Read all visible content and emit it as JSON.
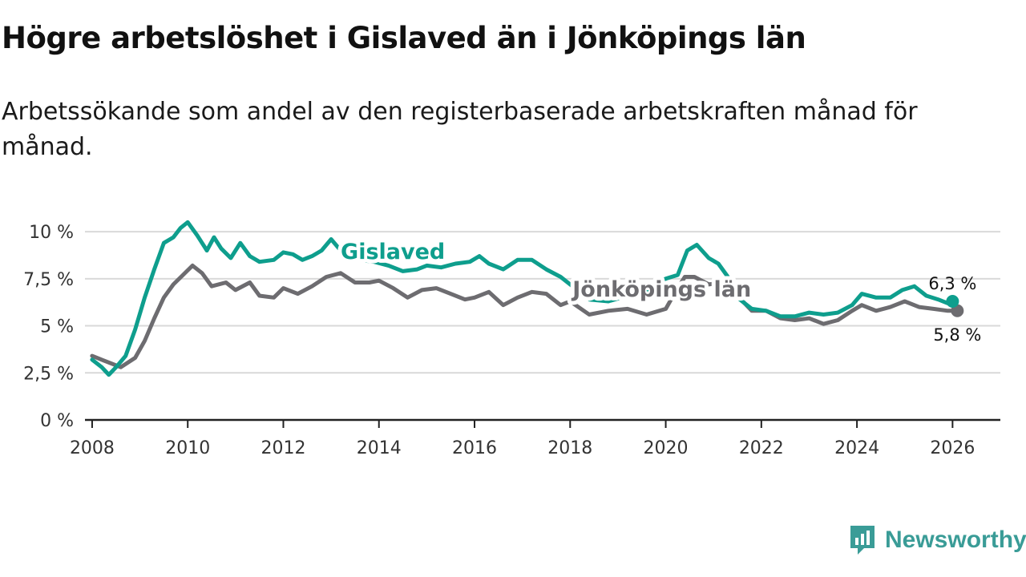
{
  "header": {
    "title": "Högre arbetslöshet i Gislaved än i Jönköpings län",
    "subtitle": "Arbetssökande som andel av den registerbaserade arbetskraften månad för månad."
  },
  "brand": {
    "name": "Newsworthy"
  },
  "chart_data": {
    "type": "line",
    "title": "Högre arbetslöshet i Gislaved än i Jönköpings län",
    "subtitle": "Arbetssökande som andel av den registerbaserade arbetskraften månad för månad.",
    "xlabel": "",
    "ylabel": "",
    "xlim": [
      2007.85,
      2027.0
    ],
    "ylim": [
      0,
      10.6
    ],
    "grid": true,
    "x_ticks": [
      2008,
      2010,
      2012,
      2014,
      2016,
      2018,
      2020,
      2022,
      2024,
      2026
    ],
    "x_tick_labels": [
      "2008",
      "2010",
      "2012",
      "2014",
      "2016",
      "2018",
      "2020",
      "2022",
      "2024",
      "2026"
    ],
    "y_ticks": [
      0,
      2.5,
      5,
      7.5,
      10
    ],
    "y_tick_labels": [
      "0 %",
      "2,5 %",
      "5 %",
      "7,5 %",
      "10 %"
    ],
    "series": [
      {
        "name": "Jönköpings län",
        "color": "#6d6c70",
        "last_label": "5,8 %",
        "x": [
          2008.0,
          2008.3,
          2008.6,
          2008.9,
          2009.1,
          2009.3,
          2009.5,
          2009.7,
          2009.9,
          2010.1,
          2010.3,
          2010.5,
          2010.8,
          2011.0,
          2011.3,
          2011.5,
          2011.8,
          2012.0,
          2012.3,
          2012.6,
          2012.9,
          2013.2,
          2013.5,
          2013.8,
          2014.0,
          2014.3,
          2014.6,
          2014.9,
          2015.2,
          2015.5,
          2015.8,
          2016.0,
          2016.3,
          2016.6,
          2016.9,
          2017.2,
          2017.5,
          2017.8,
          2018.0,
          2018.4,
          2018.8,
          2019.2,
          2019.6,
          2020.0,
          2020.2,
          2020.4,
          2020.6,
          2020.9,
          2021.2,
          2021.5,
          2021.8,
          2022.1,
          2022.4,
          2022.7,
          2023.0,
          2023.3,
          2023.6,
          2023.9,
          2024.1,
          2024.4,
          2024.7,
          2025.0,
          2025.3,
          2025.6,
          2025.9,
          2026.1
        ],
        "values": [
          3.4,
          3.1,
          2.8,
          3.3,
          4.2,
          5.4,
          6.5,
          7.2,
          7.7,
          8.2,
          7.8,
          7.1,
          7.3,
          6.9,
          7.3,
          6.6,
          6.5,
          7.0,
          6.7,
          7.1,
          7.6,
          7.8,
          7.3,
          7.3,
          7.4,
          7.0,
          6.5,
          6.9,
          7.0,
          6.7,
          6.4,
          6.5,
          6.8,
          6.1,
          6.5,
          6.8,
          6.7,
          6.1,
          6.3,
          5.6,
          5.8,
          5.9,
          5.6,
          5.9,
          6.8,
          7.6,
          7.6,
          7.2,
          7.3,
          6.6,
          5.8,
          5.8,
          5.4,
          5.3,
          5.4,
          5.1,
          5.3,
          5.8,
          6.1,
          5.8,
          6.0,
          6.3,
          6.0,
          5.9,
          5.8,
          5.8
        ]
      },
      {
        "name": "Gislaved",
        "color": "#0e9e8d",
        "last_label": "6,3 %",
        "x": [
          2008.0,
          2008.2,
          2008.35,
          2008.5,
          2008.7,
          2008.9,
          2009.1,
          2009.3,
          2009.5,
          2009.7,
          2009.85,
          2010.0,
          2010.2,
          2010.4,
          2010.55,
          2010.7,
          2010.9,
          2011.1,
          2011.3,
          2011.5,
          2011.8,
          2012.0,
          2012.2,
          2012.4,
          2012.6,
          2012.8,
          2013.0,
          2013.3,
          2013.6,
          2013.9,
          2014.2,
          2014.5,
          2014.8,
          2015.0,
          2015.3,
          2015.6,
          2015.9,
          2016.1,
          2016.3,
          2016.6,
          2016.9,
          2017.2,
          2017.5,
          2017.8,
          2018.0,
          2018.4,
          2018.8,
          2019.2,
          2019.6,
          2020.0,
          2020.25,
          2020.45,
          2020.65,
          2020.9,
          2021.1,
          2021.3,
          2021.5,
          2021.8,
          2022.1,
          2022.4,
          2022.7,
          2023.0,
          2023.3,
          2023.6,
          2023.9,
          2024.1,
          2024.4,
          2024.7,
          2024.95,
          2025.2,
          2025.45,
          2025.7,
          2025.9,
          2026.0
        ],
        "values": [
          3.2,
          2.8,
          2.4,
          2.8,
          3.4,
          4.8,
          6.5,
          8.0,
          9.4,
          9.7,
          10.2,
          10.5,
          9.8,
          9.0,
          9.7,
          9.1,
          8.6,
          9.4,
          8.7,
          8.4,
          8.5,
          8.9,
          8.8,
          8.5,
          8.7,
          9.0,
          9.6,
          8.7,
          8.5,
          8.4,
          8.2,
          7.9,
          8.0,
          8.2,
          8.1,
          8.3,
          8.4,
          8.7,
          8.3,
          8.0,
          8.5,
          8.5,
          8.0,
          7.6,
          7.2,
          6.4,
          6.3,
          6.6,
          6.9,
          7.5,
          7.7,
          9.0,
          9.3,
          8.6,
          8.3,
          7.6,
          6.5,
          5.9,
          5.8,
          5.5,
          5.5,
          5.7,
          5.6,
          5.7,
          6.1,
          6.7,
          6.5,
          6.5,
          6.9,
          7.1,
          6.6,
          6.4,
          6.2,
          6.3
        ]
      }
    ],
    "annotations": [
      "Gislaved",
      "Jönköpings län"
    ]
  }
}
